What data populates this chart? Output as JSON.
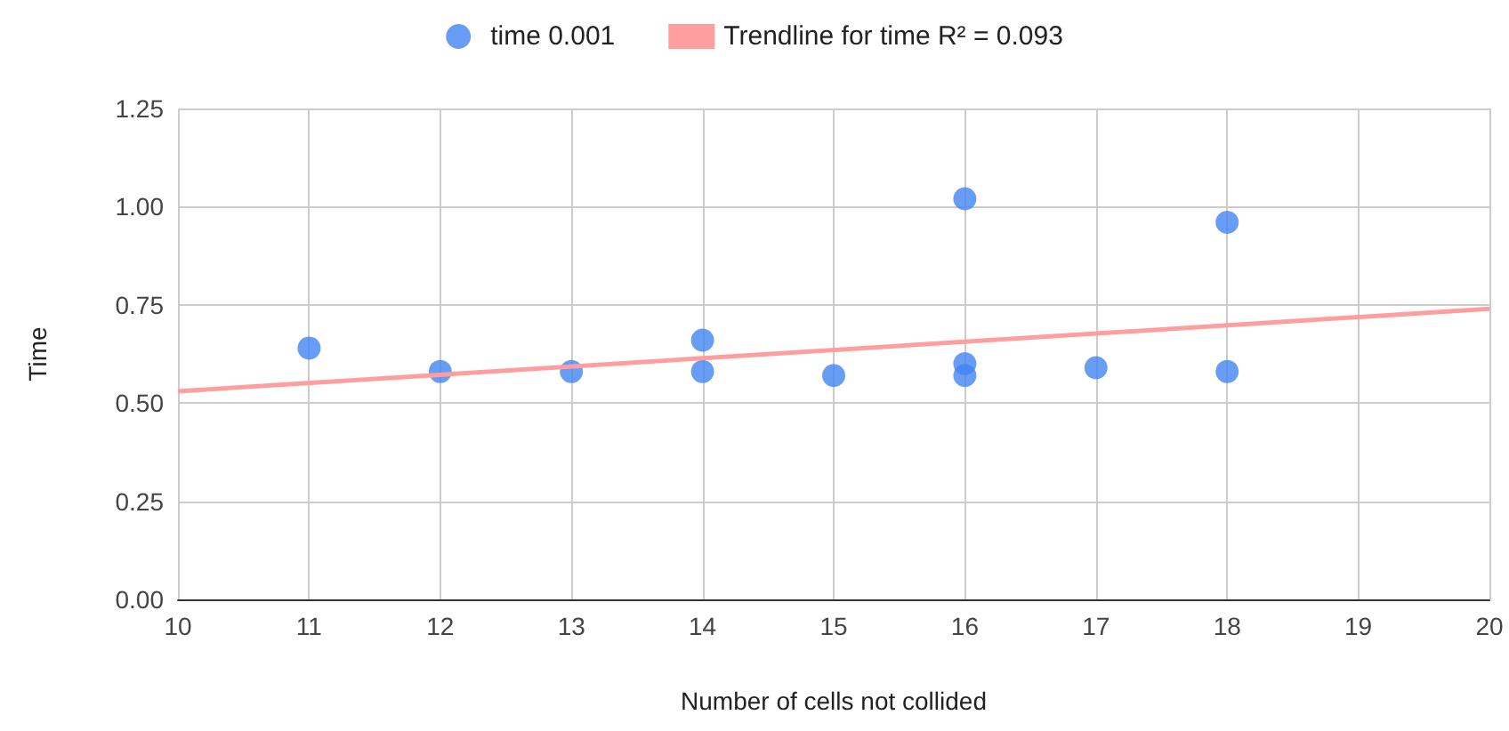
{
  "chart_data": {
    "type": "scatter",
    "xlabel": "Number of cells not collided",
    "ylabel": "Time",
    "x": [
      11,
      12,
      13,
      14,
      14,
      15,
      16,
      16,
      16,
      17,
      18,
      18
    ],
    "series": [
      {
        "name": "time 0.001",
        "color": "#4285f4",
        "values": [
          0.64,
          0.58,
          0.58,
          0.66,
          0.58,
          0.57,
          1.02,
          0.6,
          0.57,
          0.59,
          0.96,
          0.58
        ]
      },
      {
        "name": "Trendline for time R² = 0.093",
        "type": "line",
        "marker": "none",
        "color": "#ff9e9e",
        "x": [
          10,
          20
        ],
        "values": [
          0.53,
          0.74
        ]
      }
    ],
    "xlim": [
      10,
      20
    ],
    "xticks": [
      10,
      11,
      12,
      13,
      14,
      15,
      16,
      17,
      18,
      19,
      20
    ],
    "ylim": [
      0,
      1.25
    ],
    "yticks": [
      {
        "value": 0,
        "label": "0.00"
      },
      {
        "value": 0.25,
        "label": "0.25"
      },
      {
        "value": 0.5,
        "label": "0.50"
      },
      {
        "value": 0.75,
        "label": "0.75"
      },
      {
        "value": 1,
        "label": "1.00"
      },
      {
        "value": 1.25,
        "label": "1.25"
      }
    ],
    "grid": true,
    "legend": "top",
    "marker": "circle"
  }
}
